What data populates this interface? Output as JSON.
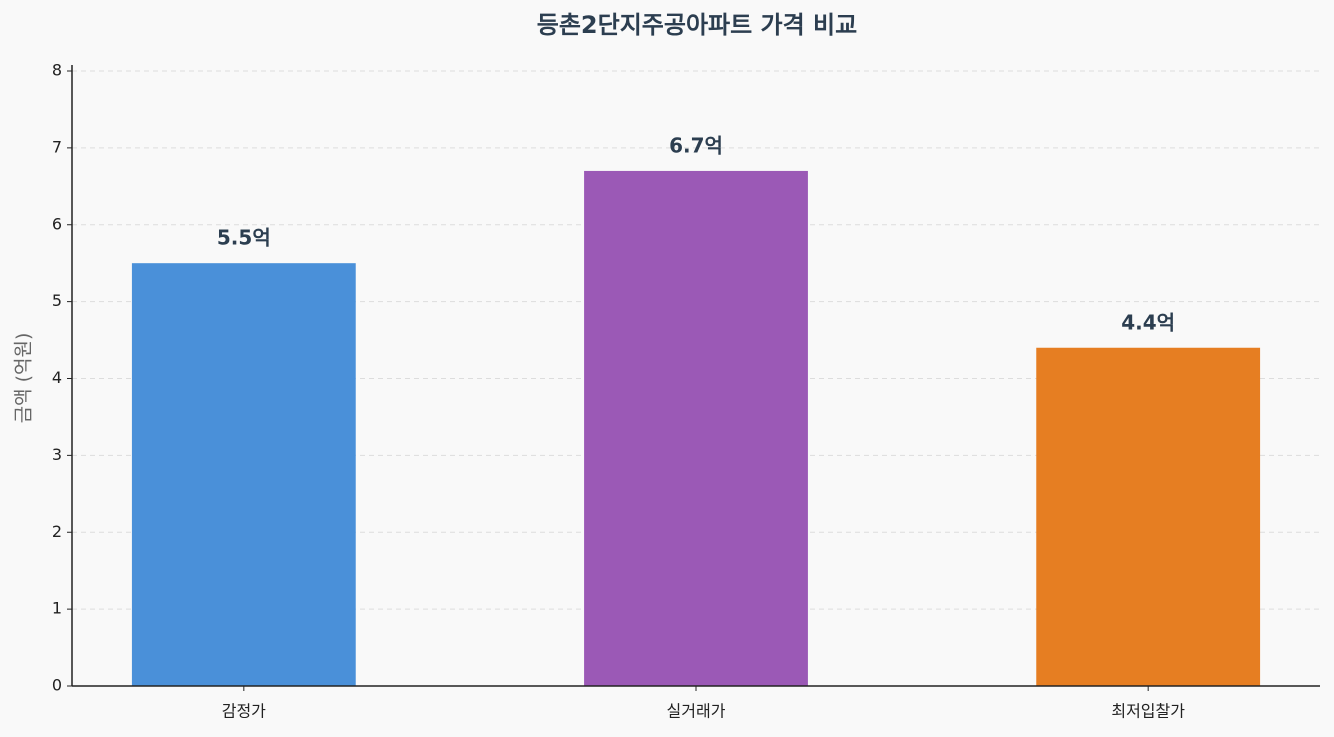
{
  "chart_data": {
    "type": "bar",
    "title": "등촌2단지주공아파트 가격 비교",
    "y_label": "금액 (억원)",
    "categories": [
      "감정가",
      "실거래가",
      "최저입찰가"
    ],
    "values": [
      5.5,
      6.7,
      4.4
    ],
    "value_labels": [
      "5.5억",
      "6.7억",
      "4.4억"
    ],
    "colors": [
      "#4a90d9",
      "#9b59b6",
      "#e67e22"
    ],
    "ylim": [
      0,
      8
    ],
    "yticks": [
      0,
      1,
      2,
      3,
      4,
      5,
      6,
      7,
      8
    ],
    "grid": true
  }
}
